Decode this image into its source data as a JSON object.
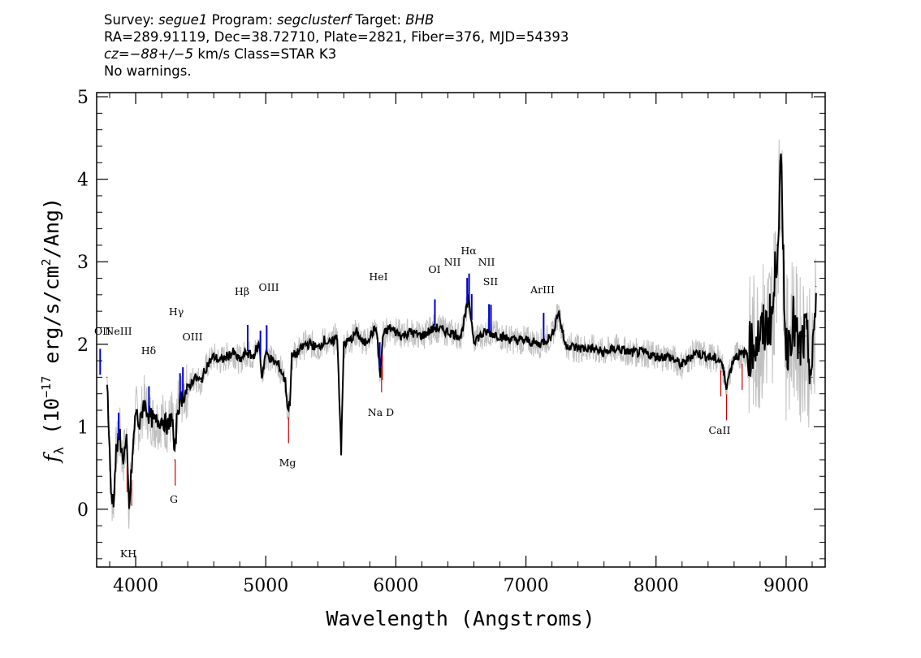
{
  "header": {
    "survey_prefix": "Survey: ",
    "survey": "segue1",
    "program_prefix": " Program: ",
    "program": "segclusterf",
    "target_prefix": " Target: ",
    "target": "BHB",
    "line2": "RA=289.91119, Dec=38.72710, Plate=2821, Fiber=376, MJD=54393",
    "cz_prefix": "cz=",
    "cz_value": "−88+/−5",
    "cz_rest": " km/s Class=STAR K3",
    "line4": "No warnings."
  },
  "chart_data": {
    "type": "line",
    "xlabel": "Wavelength (Angstroms)",
    "ylabel": "fλ (10⁻¹⁷ erg/s/cm²/Ang)",
    "xlim": [
      3700,
      9300
    ],
    "ylim": [
      -0.7,
      5.05
    ],
    "x_ticks": [
      4000,
      5000,
      6000,
      7000,
      8000,
      9000
    ],
    "y_ticks": [
      0,
      1,
      2,
      3,
      4,
      5
    ],
    "grid": false,
    "colors": {
      "smoothed": "#000000",
      "raw": "#c0c0c0",
      "emission": "#0000cc",
      "absorption": "#cc0000"
    },
    "series": [
      {
        "style": "smoothed-black",
        "x": [
          3780,
          3810,
          3830,
          3850,
          3880,
          3900,
          3930,
          3950,
          3970,
          4000,
          4030,
          4060,
          4100,
          4150,
          4200,
          4250,
          4280,
          4300,
          4320,
          4350,
          4400,
          4450,
          4500,
          4550,
          4600,
          4650,
          4700,
          4750,
          4800,
          4850,
          4900,
          4950,
          4970,
          5000,
          5050,
          5100,
          5150,
          5170,
          5185,
          5200,
          5250,
          5300,
          5350,
          5400,
          5450,
          5500,
          5550,
          5580,
          5600,
          5650,
          5700,
          5750,
          5800,
          5850,
          5880,
          5900,
          5950,
          6000,
          6050,
          6100,
          6200,
          6300,
          6400,
          6500,
          6560,
          6600,
          6700,
          6800,
          6900,
          7000,
          7100,
          7200,
          7250,
          7300,
          7400,
          7500,
          7600,
          7700,
          7800,
          7900,
          8000,
          8100,
          8200,
          8300,
          8400,
          8500,
          8540,
          8600,
          8700,
          8800,
          8850,
          8900,
          8930,
          8960,
          9000,
          9050,
          9100,
          9150,
          9200,
          9230
        ],
        "y": [
          1.6,
          0.2,
          0.1,
          0.7,
          0.9,
          0.6,
          0.8,
          0.0,
          0.5,
          1.2,
          1.0,
          1.3,
          1.15,
          1.05,
          1.1,
          1.0,
          1.15,
          0.6,
          1.2,
          1.35,
          1.45,
          1.6,
          1.55,
          1.75,
          1.85,
          1.8,
          1.85,
          1.9,
          1.8,
          1.9,
          1.85,
          2.0,
          1.6,
          1.9,
          1.8,
          1.75,
          1.55,
          1.2,
          1.3,
          1.85,
          1.9,
          2.0,
          2.0,
          1.95,
          2.05,
          2.0,
          2.1,
          0.7,
          2.0,
          2.05,
          2.15,
          2.0,
          2.1,
          2.2,
          1.6,
          2.1,
          2.2,
          2.15,
          2.1,
          2.15,
          2.1,
          2.2,
          2.15,
          2.1,
          2.55,
          2.05,
          2.15,
          2.1,
          2.05,
          2.05,
          2.0,
          2.1,
          2.4,
          2.0,
          1.95,
          1.95,
          1.9,
          1.95,
          1.9,
          1.9,
          1.85,
          1.85,
          1.75,
          1.9,
          1.85,
          1.8,
          1.5,
          1.85,
          1.9,
          2.1,
          2.2,
          2.4,
          3.2,
          4.1,
          1.9,
          2.3,
          1.9,
          2.1,
          1.6,
          2.7
        ]
      }
    ],
    "emission_lines": [
      {
        "label": "OII",
        "x": 3727
      },
      {
        "label": "NeIII",
        "x": 3869
      },
      {
        "label": "Hδ",
        "x": 4102
      },
      {
        "label": "Hγ",
        "x": 4341
      },
      {
        "label": "OIII",
        "x": 4363
      },
      {
        "label": "Hβ",
        "x": 4861
      },
      {
        "label": "OIII",
        "x": 4959
      },
      {
        "label": "OIII",
        "x": 5007
      },
      {
        "label": "HeI",
        "x": 5876
      },
      {
        "label": "OI",
        "x": 6300
      },
      {
        "label": "NII",
        "x": 6548
      },
      {
        "label": "Hα",
        "x": 6563
      },
      {
        "label": "NII",
        "x": 6583
      },
      {
        "label": "SII",
        "x": 6716
      },
      {
        "label": "SII",
        "x": 6731
      },
      {
        "label": "ArIII",
        "x": 7136
      }
    ],
    "absorption_lines": [
      {
        "label": "K",
        "x": 3934
      },
      {
        "label": "H",
        "x": 3969
      },
      {
        "label": "G",
        "x": 4304
      },
      {
        "label": "Mg",
        "x": 5175
      },
      {
        "label": "Na",
        "x": 5890
      },
      {
        "label": "D",
        "x": 5896
      },
      {
        "label": "CaII",
        "x": 8498
      },
      {
        "label": "CaII",
        "x": 8542
      },
      {
        "label": "CaII",
        "x": 8662
      }
    ],
    "line_label_texts": {
      "oii": "OII",
      "neiii": "NeIII",
      "hdelta": "Hδ",
      "hgamma": "Hγ",
      "oiii_4363": "OIII",
      "hbeta": "Hβ",
      "oiii_5007": "OIII",
      "hei": "HeI",
      "oi": "OI",
      "nii_6548": "NII",
      "halpha": "Hα",
      "nii_6583": "NII",
      "sii": "SII",
      "ariii": "ArIII",
      "kh": "KH",
      "g": "G",
      "mg": "Mg",
      "nad": "Na D",
      "caii": "CaII"
    }
  }
}
